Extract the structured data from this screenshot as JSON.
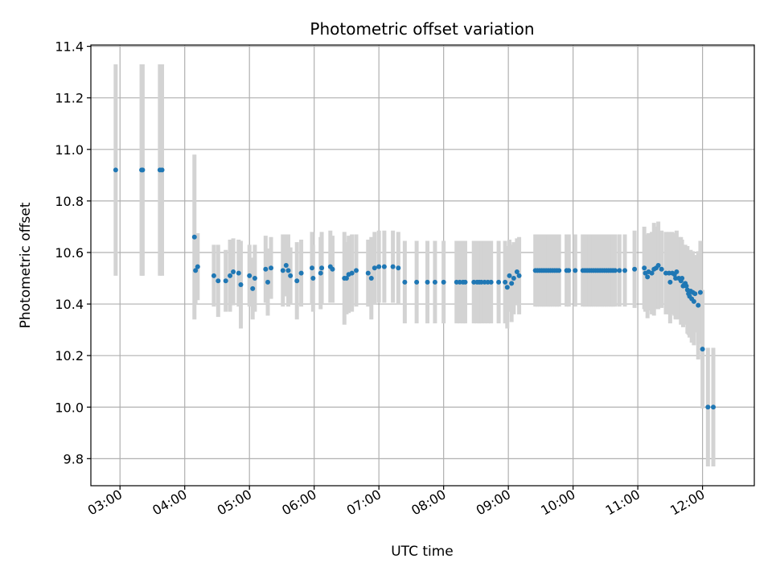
{
  "chart_data": {
    "type": "scatter",
    "title": "Photometric offset variation",
    "xlabel": "UTC time",
    "ylabel": "Photometric offset",
    "grid": true,
    "xlim": [
      "02:33",
      "12:48"
    ],
    "ylim": [
      9.695,
      11.405
    ],
    "x_ticks": [
      "03:00",
      "04:00",
      "05:00",
      "06:00",
      "07:00",
      "08:00",
      "09:00",
      "10:00",
      "11:00",
      "12:00"
    ],
    "y_ticks": [
      9.8,
      10.0,
      10.2,
      10.4,
      10.6,
      10.8,
      11.0,
      11.2,
      11.4
    ],
    "y_tick_labels": [
      "9.8",
      "10.0",
      "10.2",
      "10.4",
      "10.6",
      "10.8",
      "11.0",
      "11.2",
      "11.4"
    ],
    "colors": {
      "points": "#1f77b4",
      "errorbars": "#d3d3d3",
      "grid": "#b0b0b0"
    },
    "series": [
      {
        "x": [
          "02:56",
          "03:20",
          "03:21",
          "03:37",
          "03:39",
          "04:09",
          "04:10",
          "04:12",
          "04:27",
          "04:31",
          "04:38",
          "04:42",
          "04:45",
          "04:50",
          "04:52",
          "05:00",
          "05:03",
          "05:05",
          "05:15",
          "05:17",
          "05:20",
          "05:31",
          "05:34",
          "05:36",
          "05:38",
          "05:44",
          "05:48",
          "05:58",
          "05:59",
          "06:06",
          "06:07",
          "06:15",
          "06:17",
          "06:28",
          "06:30",
          "06:32",
          "06:35",
          "06:39",
          "06:50",
          "06:53",
          "06:56",
          "07:00",
          "07:05",
          "07:13",
          "07:18",
          "07:24",
          "07:35",
          "07:45",
          "07:52",
          "08:00",
          "08:12",
          "08:15",
          "08:18",
          "08:20",
          "08:28",
          "08:31",
          "08:33",
          "08:35",
          "08:38",
          "08:41",
          "08:44",
          "08:51",
          "08:57",
          "08:59",
          "09:01",
          "09:03",
          "09:05",
          "09:08",
          "09:10",
          "09:25",
          "09:27",
          "09:29",
          "09:31",
          "09:33",
          "09:35",
          "09:37",
          "09:39",
          "09:41",
          "09:43",
          "09:45",
          "09:47",
          "09:54",
          "09:56",
          "10:02",
          "10:09",
          "10:11",
          "10:13",
          "10:15",
          "10:17",
          "10:19",
          "10:21",
          "10:23",
          "10:25",
          "10:27",
          "10:29",
          "10:31",
          "10:33",
          "10:35",
          "10:37",
          "10:39",
          "10:43",
          "10:48",
          "10:57",
          "11:06",
          "11:07",
          "11:09",
          "11:10",
          "11:13",
          "11:15",
          "11:17",
          "11:19",
          "11:22",
          "11:26",
          "11:29",
          "11:30",
          "11:32",
          "11:34",
          "11:35",
          "11:36",
          "11:38",
          "11:40",
          "11:41",
          "11:42",
          "11:43",
          "11:44",
          "11:45",
          "11:46",
          "11:47",
          "11:48",
          "11:49",
          "11:50",
          "11:51",
          "11:52",
          "11:53",
          "11:56",
          "11:58",
          "12:00",
          "12:05",
          "12:10"
        ],
        "y": [
          10.92,
          10.92,
          10.92,
          10.92,
          10.92,
          10.66,
          10.53,
          10.545,
          10.51,
          10.49,
          10.49,
          10.51,
          10.525,
          10.52,
          10.475,
          10.51,
          10.46,
          10.5,
          10.535,
          10.485,
          10.54,
          10.53,
          10.55,
          10.53,
          10.51,
          10.49,
          10.52,
          10.54,
          10.5,
          10.52,
          10.54,
          10.545,
          10.535,
          10.5,
          10.5,
          10.515,
          10.52,
          10.53,
          10.52,
          10.5,
          10.54,
          10.545,
          10.545,
          10.545,
          10.54,
          10.485,
          10.485,
          10.485,
          10.485,
          10.485,
          10.485,
          10.485,
          10.485,
          10.485,
          10.485,
          10.485,
          10.485,
          10.485,
          10.485,
          10.485,
          10.485,
          10.485,
          10.485,
          10.465,
          10.51,
          10.48,
          10.5,
          10.525,
          10.51,
          10.53,
          10.53,
          10.53,
          10.53,
          10.53,
          10.53,
          10.53,
          10.53,
          10.53,
          10.53,
          10.53,
          10.53,
          10.53,
          10.53,
          10.53,
          10.53,
          10.53,
          10.53,
          10.53,
          10.53,
          10.53,
          10.53,
          10.53,
          10.53,
          10.53,
          10.53,
          10.53,
          10.53,
          10.53,
          10.53,
          10.53,
          10.53,
          10.53,
          10.535,
          10.54,
          10.52,
          10.505,
          10.525,
          10.52,
          10.535,
          10.54,
          10.55,
          10.535,
          10.52,
          10.52,
          10.485,
          10.52,
          10.515,
          10.5,
          10.525,
          10.5,
          10.49,
          10.5,
          10.47,
          10.475,
          10.48,
          10.47,
          10.455,
          10.44,
          10.43,
          10.45,
          10.42,
          10.445,
          10.41,
          10.44,
          10.395,
          10.445,
          10.225,
          10.0,
          10.0
        ],
        "err": [
          0.41,
          0.41,
          0.41,
          0.41,
          0.41,
          0.32,
          0.13,
          0.13,
          0.12,
          0.14,
          0.12,
          0.14,
          0.13,
          0.13,
          0.17,
          0.12,
          0.12,
          0.13,
          0.13,
          0.13,
          0.12,
          0.14,
          0.12,
          0.14,
          0.11,
          0.15,
          0.13,
          0.14,
          0.13,
          0.14,
          0.14,
          0.14,
          0.13,
          0.18,
          0.14,
          0.15,
          0.15,
          0.14,
          0.13,
          0.16,
          0.14,
          0.14,
          0.14,
          0.14,
          0.14,
          0.16,
          0.16,
          0.16,
          0.16,
          0.16,
          0.16,
          0.16,
          0.16,
          0.16,
          0.16,
          0.16,
          0.16,
          0.16,
          0.16,
          0.16,
          0.16,
          0.16,
          0.16,
          0.16,
          0.14,
          0.15,
          0.14,
          0.13,
          0.15,
          0.14,
          0.14,
          0.14,
          0.14,
          0.14,
          0.14,
          0.14,
          0.14,
          0.14,
          0.14,
          0.14,
          0.14,
          0.14,
          0.14,
          0.14,
          0.14,
          0.14,
          0.14,
          0.14,
          0.14,
          0.14,
          0.14,
          0.14,
          0.14,
          0.14,
          0.14,
          0.14,
          0.14,
          0.14,
          0.14,
          0.14,
          0.14,
          0.14,
          0.15,
          0.16,
          0.15,
          0.16,
          0.15,
          0.16,
          0.18,
          0.16,
          0.17,
          0.15,
          0.16,
          0.16,
          0.16,
          0.16,
          0.16,
          0.16,
          0.16,
          0.16,
          0.17,
          0.15,
          0.16,
          0.14,
          0.15,
          0.15,
          0.17,
          0.16,
          0.16,
          0.16,
          0.17,
          0.16,
          0.17,
          0.15,
          0.21,
          0.2,
          0.23,
          0.23,
          0.23
        ]
      }
    ]
  }
}
